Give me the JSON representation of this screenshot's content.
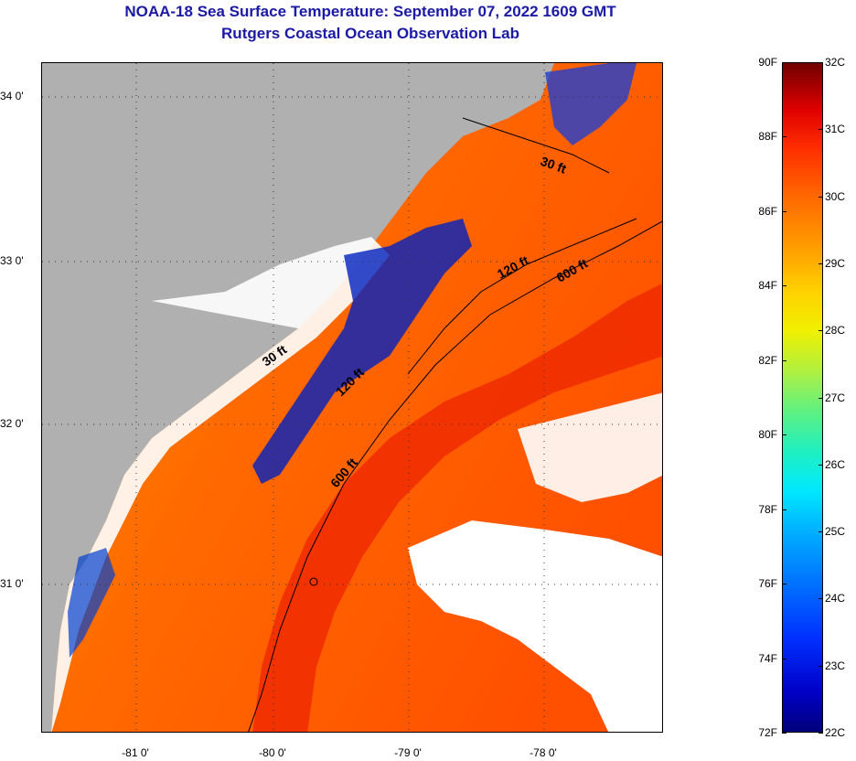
{
  "header": {
    "title": "NOAA-18 Sea Surface Temperature:  September 07, 2022 1609 GMT",
    "subtitle": "Rutgers Coastal Ocean Observation Lab"
  },
  "map": {
    "lat_labels": [
      "34 0'",
      "33 0'",
      "32 0'",
      "31 0'"
    ],
    "lon_labels": [
      "-81 0'",
      "-80 0'",
      "-79 0'",
      "-78 0'"
    ],
    "contour_labels": [
      "30 ft",
      "120 ft",
      "600 ft",
      "30 ft",
      "120 ft",
      "600 ft"
    ],
    "colors": {
      "land": "#b0b0b0",
      "cloud": "#ffffff",
      "warm": "#ff5a00",
      "hot": "#f02a00",
      "mid": "#ffa000",
      "cool": "#0020c0"
    }
  },
  "colorbar": {
    "fahrenheit": [
      "90F",
      "88F",
      "86F",
      "84F",
      "82F",
      "80F",
      "78F",
      "76F",
      "74F",
      "72F"
    ],
    "celsius": [
      "32C",
      "31C",
      "30C",
      "29C",
      "28C",
      "27C",
      "26C",
      "25C",
      "24C",
      "23C",
      "22C"
    ]
  }
}
